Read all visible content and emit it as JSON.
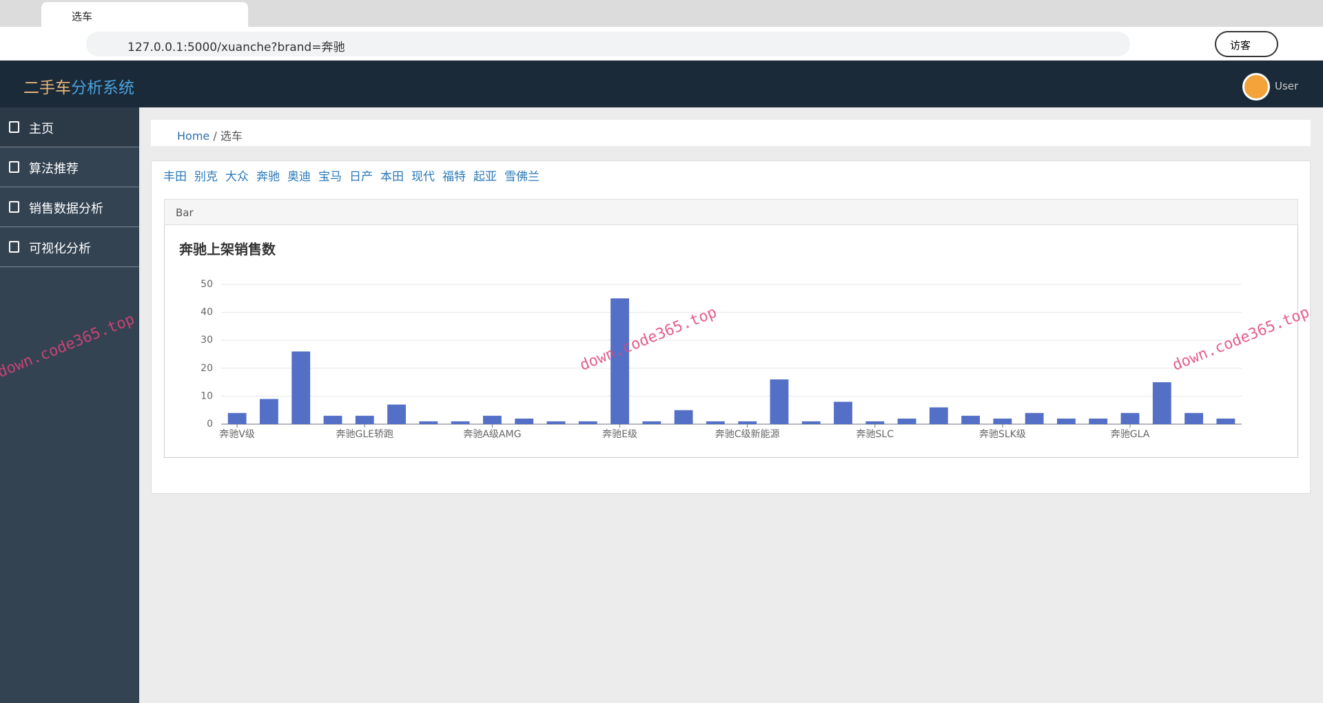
{
  "browser": {
    "tab_title": "选车",
    "url": "127.0.0.1:5000/xuanche?brand=奔驰",
    "profile": "访客"
  },
  "navbar": {
    "brand_part1": "二手车",
    "brand_part2": "分析系统",
    "user": "User"
  },
  "sidebar": {
    "items": [
      "主页",
      "算法推荐",
      "销售数据分析",
      "可视化分析"
    ]
  },
  "breadcrumb": {
    "home": "Home",
    "current": "选车"
  },
  "brands": [
    "丰田",
    "别克",
    "大众",
    "奔驰",
    "奥迪",
    "宝马",
    "日产",
    "本田",
    "现代",
    "福特",
    "起亚",
    "雪佛兰"
  ],
  "panel": {
    "heading": "Bar"
  },
  "watermark": "down.code365.top",
  "chart_data": {
    "type": "bar",
    "title": "奔驰上架销售数",
    "categories": [
      "奔驰V级",
      null,
      null,
      null,
      "奔驰GLE轿跑",
      null,
      null,
      null,
      "奔驰A级AMG",
      null,
      null,
      null,
      "奔驰E级",
      null,
      null,
      null,
      "奔驰C级新能源",
      null,
      null,
      null,
      "奔驰SLC",
      null,
      null,
      null,
      "奔驰SLK级",
      null,
      null,
      null,
      "奔驰GLA",
      null,
      null,
      null
    ],
    "values": [
      4,
      9,
      26,
      3,
      3,
      7,
      1,
      1,
      3,
      2,
      1,
      1,
      45,
      1,
      5,
      1,
      1,
      16,
      1,
      8,
      1,
      2,
      6,
      3,
      2,
      4,
      2,
      2,
      4,
      15,
      4,
      2
    ],
    "color": "#5470c6",
    "ylim": [
      0,
      50
    ],
    "yticks": [
      0,
      10,
      20,
      30,
      40,
      50
    ],
    "grid": true
  }
}
